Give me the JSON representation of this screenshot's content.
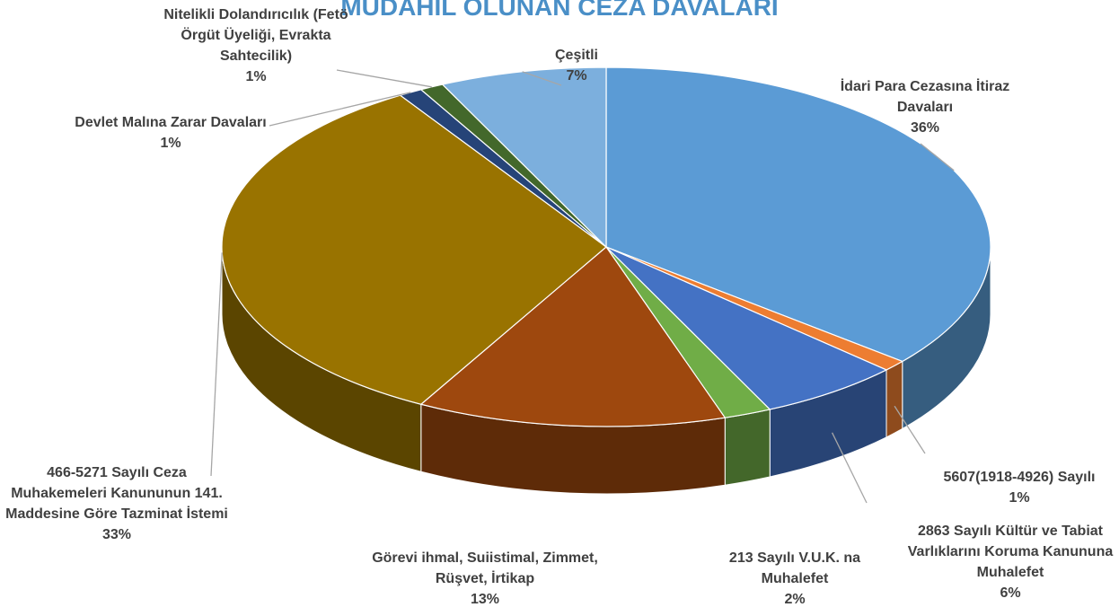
{
  "chart_data": {
    "type": "pie3d",
    "title": "MÜDAHİL OLUNAN CEZA DAVALARI",
    "categories": [
      "İdari Para Cezasına İtiraz Davaları",
      "5607(1918-4926) Sayılı",
      "2863 Sayılı Kültür ve Tabiat Varlıklarını Koruma Kanununa Muhalefet",
      "213 Sayılı V.U.K. na Muhalefet",
      "Görevi ihmal, Suiistimal, Zimmet, Rüşvet, İrtikap",
      "466-5271 Sayılı Ceza Muhakemeleri Kanununun 141. Maddesine Göre Tazminat İstemi",
      "Devlet Malına Zarar Davaları",
      "Nitelikli Dolandırıcılık (Fetö Örgüt Üyeliği, Evrakta Sahtecilik)",
      "Çeşitli"
    ],
    "values": [
      36,
      1,
      6,
      2,
      13,
      33,
      1,
      1,
      7
    ],
    "value_labels": [
      "36%",
      "1%",
      "6%",
      "2%",
      "13%",
      "33%",
      "1%",
      "1%",
      "7%"
    ],
    "colors": [
      "#5b9bd5",
      "#ed7d31",
      "#4472c4",
      "#70ad47",
      "#9e480e",
      "#997300",
      "#264478",
      "#43682b",
      "#7cafdd"
    ]
  }
}
